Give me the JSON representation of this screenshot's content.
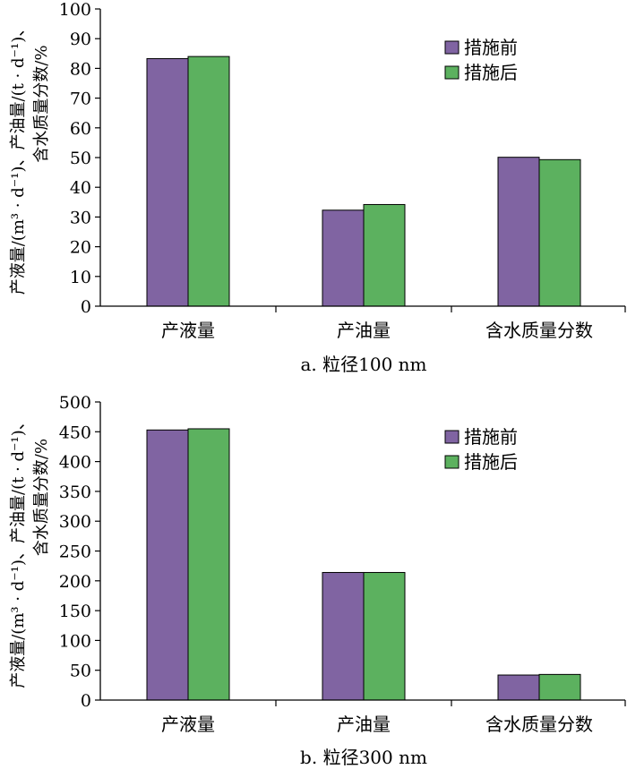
{
  "colors": {
    "before": "#8064A2",
    "after": "#5CB15F"
  },
  "chart_data": [
    {
      "type": "bar",
      "title": "a. 粒径100 nm",
      "ylabel_line1": "产液量/(m³ · d⁻¹)、产油量/(t · d⁻¹)、",
      "ylabel_line2": "含水质量分数/%",
      "categories": [
        "产液量",
        "产油量",
        "含水质量分数"
      ],
      "series": [
        {
          "name": "措施前",
          "values": [
            83.3,
            32.3,
            50.1
          ]
        },
        {
          "name": "措施后",
          "values": [
            84.0,
            34.2,
            49.3
          ]
        }
      ],
      "ylim": [
        0,
        100
      ],
      "yticks": [
        0,
        10,
        20,
        30,
        40,
        50,
        60,
        70,
        80,
        90,
        100
      ],
      "legend_position": "top-right",
      "grid": false
    },
    {
      "type": "bar",
      "title": "b. 粒径300 nm",
      "ylabel_line1": "产液量/(m³ · d⁻¹)、产油量/(t · d⁻¹)、",
      "ylabel_line2": "含水质量分数/%",
      "categories": [
        "产液量",
        "产油量",
        "含水质量分数"
      ],
      "series": [
        {
          "name": "措施前",
          "values": [
            453,
            214,
            42
          ]
        },
        {
          "name": "措施后",
          "values": [
            455,
            214,
            43
          ]
        }
      ],
      "ylim": [
        0,
        500
      ],
      "yticks": [
        0,
        50,
        100,
        150,
        200,
        250,
        300,
        350,
        400,
        450,
        500
      ],
      "legend_position": "top-right",
      "grid": false
    }
  ]
}
